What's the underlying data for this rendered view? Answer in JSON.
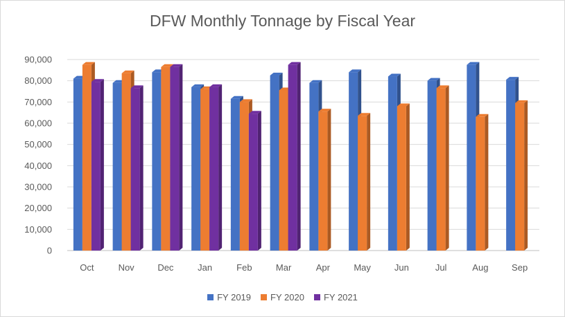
{
  "chart_data": {
    "type": "bar",
    "title": "DFW Monthly Tonnage by Fiscal Year",
    "xlabel": "",
    "ylabel": "",
    "categories": [
      "Oct",
      "Nov",
      "Dec",
      "Jan",
      "Feb",
      "Mar",
      "Apr",
      "May",
      "Jun",
      "Jul",
      "Aug",
      "Sep"
    ],
    "ylim": [
      0,
      90000
    ],
    "yticks": [
      "0",
      "10,000",
      "20,000",
      "30,000",
      "40,000",
      "50,000",
      "60,000",
      "70,000",
      "80,000",
      "90,000"
    ],
    "grid": true,
    "legend_position": "bottom",
    "series": [
      {
        "name": "FY 2019",
        "color": "#4472c4",
        "values": [
          81000,
          79000,
          84000,
          77000,
          71500,
          82500,
          79000,
          84000,
          82000,
          80000,
          87500,
          80500
        ]
      },
      {
        "name": "FY 2020",
        "color": "#ed7d31",
        "values": [
          87500,
          83500,
          86500,
          76000,
          70000,
          75500,
          65500,
          63500,
          68000,
          76500,
          63000,
          69500
        ]
      },
      {
        "name": "FY 2021",
        "color": "#7030a0",
        "values": [
          79500,
          76500,
          86500,
          77000,
          64500,
          87500,
          null,
          null,
          null,
          null,
          null,
          null
        ]
      }
    ]
  }
}
